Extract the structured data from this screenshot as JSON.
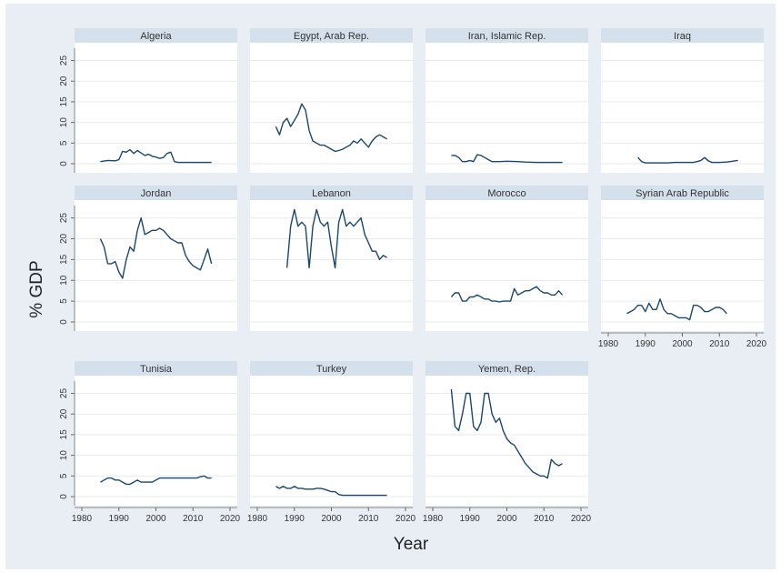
{
  "page": {
    "background": "#ffffff",
    "frame_color": "#e9eef4",
    "strip_color": "#d4e1ec",
    "line_color": "#1a476f"
  },
  "xlabel": "Year",
  "ylabel": "% GDP",
  "chart_data": {
    "type": "line",
    "title": "",
    "xlabel": "Year",
    "ylabel": "% GDP",
    "xlim": [
      1980,
      2020
    ],
    "ylim": [
      0,
      28
    ],
    "x_ticks": [
      1980,
      1990,
      2000,
      2010,
      2020
    ],
    "y_ticks": [
      0,
      5,
      10,
      15,
      20,
      25
    ],
    "grid": true,
    "legend": "none",
    "facets": [
      {
        "name": "Algeria",
        "x": [
          1985,
          1987,
          1989,
          1990,
          1991,
          1992,
          1993,
          1994,
          1995,
          1996,
          1997,
          1998,
          1999,
          2000,
          2001,
          2002,
          2003,
          2004,
          2005,
          2006,
          2008,
          2010,
          2012,
          2015
        ],
        "y": [
          0.5,
          0.8,
          0.7,
          1.0,
          3.0,
          2.8,
          3.4,
          2.5,
          3.2,
          2.6,
          2.0,
          2.3,
          1.8,
          1.6,
          1.3,
          1.5,
          2.5,
          2.8,
          0.5,
          0.3,
          0.3,
          0.3,
          0.3,
          0.3
        ]
      },
      {
        "name": "Egypt, Arab Rep.",
        "x": [
          1985,
          1986,
          1987,
          1988,
          1989,
          1990,
          1991,
          1992,
          1993,
          1994,
          1995,
          1996,
          1997,
          1998,
          1999,
          2000,
          2001,
          2002,
          2003,
          2004,
          2005,
          2006,
          2007,
          2008,
          2009,
          2010,
          2011,
          2012,
          2013,
          2014,
          2015
        ],
        "y": [
          9,
          7,
          10,
          11,
          9,
          10.5,
          12,
          14.5,
          13,
          8,
          5.5,
          5,
          4.5,
          4.5,
          4,
          3.5,
          3,
          3.2,
          3.5,
          4,
          4.5,
          5.5,
          5,
          6,
          5,
          4,
          5.5,
          6.5,
          7,
          6.5,
          6
        ]
      },
      {
        "name": "Iran, Islamic Rep.",
        "x": [
          1985,
          1986,
          1987,
          1988,
          1989,
          1990,
          1991,
          1992,
          1993,
          1994,
          1995,
          1996,
          1998,
          2000,
          2003,
          2005,
          2008,
          2010,
          2012,
          2015
        ],
        "y": [
          2,
          2,
          1.5,
          0.5,
          0.5,
          0.8,
          0.5,
          2.2,
          2.0,
          1.5,
          1.0,
          0.5,
          0.5,
          0.6,
          0.5,
          0.4,
          0.3,
          0.3,
          0.3,
          0.3
        ]
      },
      {
        "name": "Iraq",
        "x": [
          1988,
          1989,
          1990,
          1992,
          1994,
          1996,
          1998,
          2000,
          2002,
          2003,
          2004,
          2005,
          2006,
          2007,
          2008,
          2010,
          2012,
          2015
        ],
        "y": [
          1.5,
          0.5,
          0.2,
          0.2,
          0.2,
          0.2,
          0.3,
          0.3,
          0.3,
          0.3,
          0.5,
          0.8,
          1.5,
          0.7,
          0.3,
          0.3,
          0.4,
          0.8
        ]
      },
      {
        "name": "Jordan",
        "x": [
          1985,
          1986,
          1987,
          1988,
          1989,
          1990,
          1991,
          1992,
          1993,
          1994,
          1995,
          1996,
          1997,
          1998,
          1999,
          2000,
          2001,
          2002,
          2003,
          2004,
          2005,
          2006,
          2007,
          2008,
          2009,
          2010,
          2011,
          2012,
          2013,
          2014,
          2015
        ],
        "y": [
          20,
          18,
          14,
          14,
          14.5,
          12,
          10.5,
          15,
          18,
          17,
          22,
          25,
          21,
          21.5,
          22,
          22,
          22.5,
          22,
          21,
          20,
          19.5,
          19,
          19,
          16,
          14.5,
          13.5,
          13,
          12.5,
          15,
          17.5,
          14
        ]
      },
      {
        "name": "Lebanon",
        "x": [
          1988,
          1989,
          1990,
          1991,
          1992,
          1993,
          1994,
          1995,
          1996,
          1997,
          1998,
          1999,
          2000,
          2001,
          2002,
          2003,
          2004,
          2005,
          2006,
          2007,
          2008,
          2009,
          2010,
          2011,
          2012,
          2013,
          2014,
          2015
        ],
        "y": [
          13,
          23,
          27,
          23,
          24,
          23,
          13,
          23,
          27,
          24,
          23,
          24,
          18,
          13,
          24,
          27,
          23,
          24,
          23,
          24,
          25,
          21,
          19,
          17,
          17,
          15,
          16,
          15.5
        ]
      },
      {
        "name": "Morocco",
        "x": [
          1985,
          1986,
          1987,
          1988,
          1989,
          1990,
          1991,
          1992,
          1993,
          1994,
          1995,
          1996,
          1997,
          1998,
          1999,
          2000,
          2001,
          2002,
          2003,
          2004,
          2005,
          2006,
          2007,
          2008,
          2009,
          2010,
          2011,
          2012,
          2013,
          2014,
          2015
        ],
        "y": [
          6,
          7,
          7,
          5,
          5,
          6,
          6,
          6.5,
          6,
          5.5,
          5.5,
          5,
          5,
          4.8,
          5,
          5,
          5,
          8,
          6.5,
          7,
          7.5,
          7.5,
          8,
          8.5,
          7.5,
          7,
          7,
          6.5,
          6.5,
          7.5,
          6.5
        ]
      },
      {
        "name": "Syrian Arab Republic",
        "x": [
          1985,
          1986,
          1987,
          1988,
          1989,
          1990,
          1991,
          1992,
          1993,
          1994,
          1995,
          1996,
          1997,
          1998,
          1999,
          2000,
          2001,
          2002,
          2003,
          2004,
          2005,
          2006,
          2007,
          2008,
          2009,
          2010,
          2011,
          2012
        ],
        "y": [
          2,
          2.5,
          3,
          4,
          4,
          2.5,
          4.5,
          3,
          3,
          5.5,
          3,
          2,
          2,
          1.5,
          1,
          1,
          1,
          0.5,
          4,
          4,
          3.5,
          2.5,
          2.5,
          3,
          3.5,
          3.5,
          3,
          2
        ]
      },
      {
        "name": "Tunisia",
        "x": [
          1985,
          1986,
          1987,
          1988,
          1989,
          1990,
          1991,
          1992,
          1993,
          1994,
          1995,
          1996,
          1997,
          1998,
          1999,
          2000,
          2001,
          2002,
          2003,
          2004,
          2005,
          2006,
          2007,
          2008,
          2009,
          2010,
          2011,
          2012,
          2013,
          2014,
          2015
        ],
        "y": [
          3.5,
          4,
          4.5,
          4.5,
          4,
          4,
          3.5,
          3,
          3,
          3.5,
          4,
          3.5,
          3.5,
          3.5,
          3.5,
          4,
          4.5,
          4.5,
          4.5,
          4.5,
          4.5,
          4.5,
          4.5,
          4.5,
          4.5,
          4.5,
          4.5,
          4.8,
          5,
          4.5,
          4.5
        ]
      },
      {
        "name": "Turkey",
        "x": [
          1985,
          1986,
          1987,
          1988,
          1989,
          1990,
          1991,
          1992,
          1993,
          1994,
          1995,
          1996,
          1997,
          1998,
          1999,
          2000,
          2001,
          2002,
          2003,
          2004,
          2006,
          2008,
          2010,
          2012,
          2015
        ],
        "y": [
          2.5,
          2,
          2.5,
          2,
          2,
          2.5,
          2,
          2,
          1.8,
          1.8,
          1.8,
          2,
          2,
          1.8,
          1.5,
          1.2,
          1.2,
          0.5,
          0.3,
          0.3,
          0.3,
          0.3,
          0.3,
          0.3,
          0.3
        ]
      },
      {
        "name": "Yemen, Rep.",
        "x": [
          1985,
          1986,
          1987,
          1988,
          1989,
          1990,
          1991,
          1992,
          1993,
          1994,
          1995,
          1996,
          1997,
          1998,
          1999,
          2000,
          2001,
          2002,
          2003,
          2004,
          2005,
          2006,
          2007,
          2008,
          2009,
          2010,
          2011,
          2012,
          2013,
          2014,
          2015
        ],
        "y": [
          26,
          17,
          16,
          20,
          25,
          25,
          17,
          16,
          18,
          25,
          25,
          20,
          18,
          19,
          16,
          14,
          13,
          12.5,
          11,
          9.5,
          8,
          7,
          6,
          5.5,
          5,
          5,
          4.5,
          9,
          8,
          7.5,
          8
        ]
      }
    ]
  }
}
